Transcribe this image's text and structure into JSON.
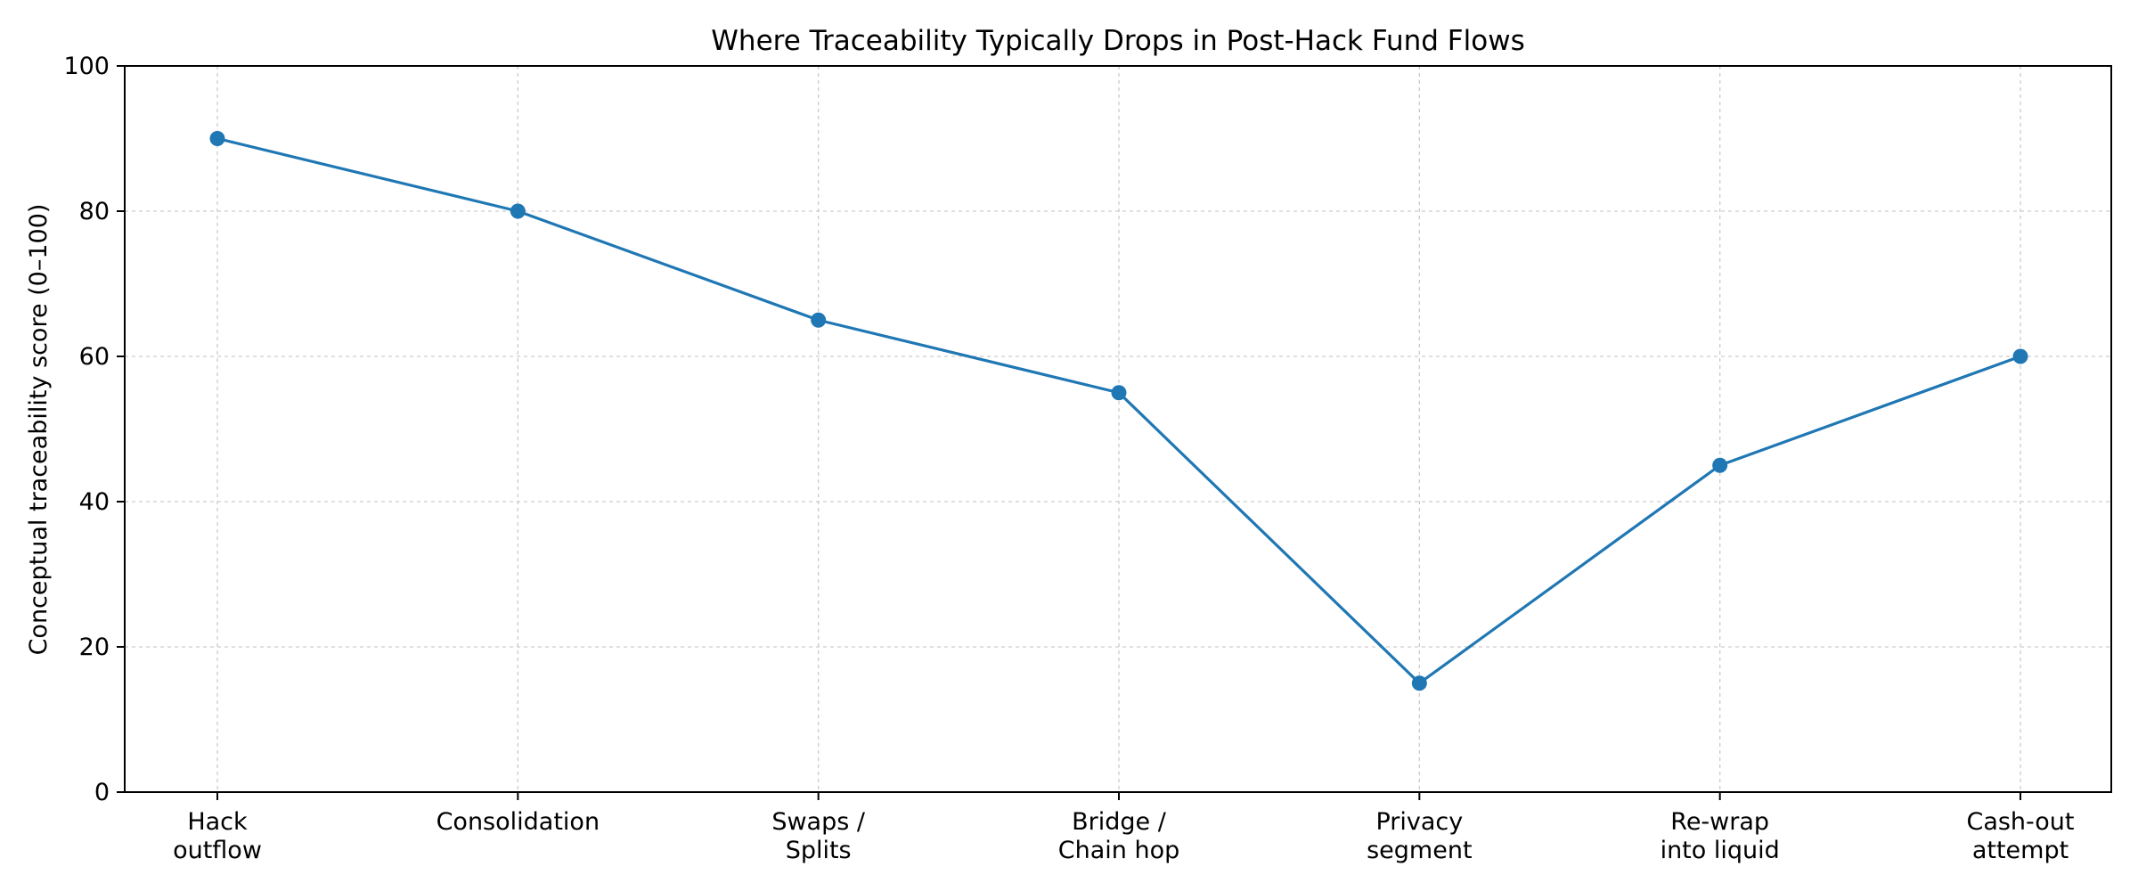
{
  "chart_data": {
    "type": "line",
    "title": "Where Traceability Typically Drops in Post-Hack Fund Flows",
    "xlabel": "",
    "ylabel": "Conceptual traceability score (0–100)",
    "ylim": [
      0,
      100
    ],
    "yticks": [
      0,
      20,
      40,
      60,
      80,
      100
    ],
    "grid": true,
    "categories": [
      [
        "Hack",
        "outflow"
      ],
      [
        "Consolidation"
      ],
      [
        "Swaps /",
        "Splits"
      ],
      [
        "Bridge /",
        "Chain hop"
      ],
      [
        "Privacy",
        "segment"
      ],
      [
        "Re-wrap",
        "into liquid"
      ],
      [
        "Cash-out",
        "attempt"
      ]
    ],
    "series": [
      {
        "values": [
          90,
          80,
          65,
          55,
          15,
          45,
          60
        ],
        "color": "#1f77b4"
      }
    ]
  }
}
